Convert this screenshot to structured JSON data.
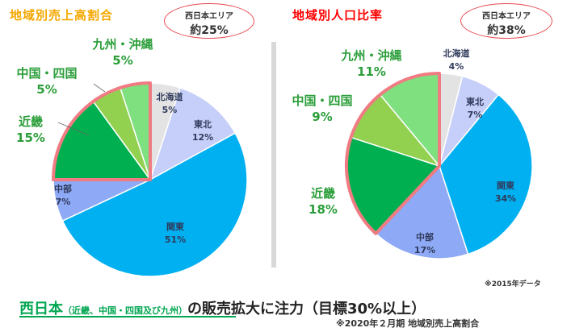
{
  "left": {
    "title": "地域別売上高割合",
    "callout": {
      "line1": "西日本エリア",
      "line2": "約25%"
    }
  },
  "right": {
    "title": "地域別人口比率",
    "callout": {
      "line1": "西日本エリア",
      "line2": "約38%"
    },
    "note": "※2015年データ"
  },
  "bottom": {
    "prefix": "西日本",
    "paren": "（近畿、中国・四国及び九州）",
    "rest": "の販売拡大に注力（目標30%以上）",
    "sub": "※2020年２月期 地域別売上高割合"
  },
  "colors": {
    "hokkaido": "#e3e3e3",
    "tohoku": "#c6cff9",
    "kanto": "#00b0f0",
    "chubu": "#8ea9f5",
    "kinki": "#00b050",
    "chugoku_shikoku": "#92d050",
    "kyushu": "#7fe07f",
    "highlight": "#f07b82"
  },
  "chart_data": [
    {
      "type": "pie",
      "title": "地域別売上高割合",
      "categories": [
        "北海道",
        "東北",
        "関東",
        "中部",
        "近畿",
        "中国・四国",
        "九州・沖縄"
      ],
      "values": [
        5,
        12,
        51,
        7,
        15,
        5,
        5
      ],
      "labels": [
        "5%",
        "12%",
        "51%",
        "7%",
        "15%",
        "5%",
        "5%"
      ],
      "highlight": [
        "近畿",
        "中国・四国",
        "九州・沖縄"
      ]
    },
    {
      "type": "pie",
      "title": "地域別人口比率",
      "categories": [
        "北海道",
        "東北",
        "関東",
        "中部",
        "近畿",
        "中国・四国",
        "九州・沖縄"
      ],
      "values": [
        4,
        7,
        34,
        17,
        18,
        9,
        11
      ],
      "labels": [
        "4%",
        "7%",
        "34%",
        "17%",
        "18%",
        "9%",
        "11%"
      ],
      "highlight": [
        "近畿",
        "中国・四国",
        "九州・沖縄"
      ]
    }
  ]
}
